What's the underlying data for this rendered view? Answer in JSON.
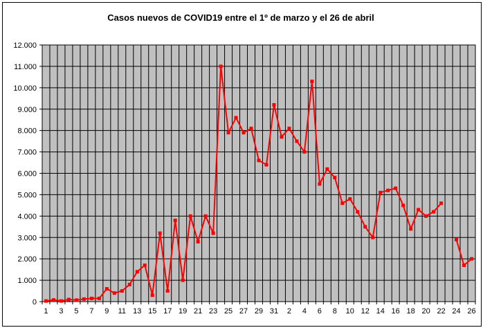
{
  "chart_data": {
    "type": "line",
    "title": "Casos nuevos de COVID19 entre el 1º de marzo y el 26 de abril",
    "xlabel": "",
    "ylabel": "",
    "ylim": [
      0,
      12000
    ],
    "grid": true,
    "legend": "none",
    "colors": {
      "plot_background": "#c0c0c0",
      "grid": "#000000",
      "series": "#ff0000"
    },
    "y_tick_labels": [
      "0",
      "1.000",
      "2.000",
      "3.000",
      "4.000",
      "5.000",
      "6.000",
      "7.000",
      "8.000",
      "9.000",
      "10.000",
      "11.000",
      "12.000"
    ],
    "x_tick_labels": [
      "1",
      "3",
      "5",
      "7",
      "9",
      "11",
      "13",
      "15",
      "17",
      "19",
      "21",
      "23",
      "25",
      "27",
      "29",
      "31",
      "2",
      "4",
      "6",
      "8",
      "10",
      "12",
      "14",
      "16",
      "18",
      "20",
      "22",
      "24",
      "26"
    ],
    "x": [
      "1",
      "2",
      "3",
      "4",
      "5",
      "6",
      "7",
      "8",
      "9",
      "10",
      "11",
      "12",
      "13",
      "14",
      "15",
      "16",
      "17",
      "18",
      "19",
      "20",
      "21",
      "22",
      "23",
      "24",
      "25",
      "26",
      "27",
      "28",
      "29",
      "30",
      "31",
      "1",
      "2",
      "3",
      "4",
      "5",
      "6",
      "7",
      "8",
      "9",
      "10",
      "11",
      "12",
      "13",
      "14",
      "15",
      "16",
      "17",
      "18",
      "19",
      "20",
      "21",
      "22",
      "23",
      "24",
      "25",
      "26"
    ],
    "series": [
      {
        "values": [
          30,
          80,
          30,
          100,
          70,
          120,
          150,
          150,
          600,
          400,
          500,
          800,
          1400,
          1700,
          300,
          3200,
          500,
          3800,
          1000,
          4000,
          2800,
          4000,
          3200,
          11000,
          7900,
          8600,
          7900,
          8100,
          6600,
          6400,
          9200,
          7700,
          8100,
          7500,
          7000,
          10300,
          5500,
          6200,
          5800,
          4600,
          4800,
          4200,
          3500,
          3000,
          5100,
          5200,
          5300,
          4500,
          3400,
          4300,
          4000,
          4200,
          4600,
          null,
          2900,
          1700,
          2000
        ]
      }
    ]
  }
}
